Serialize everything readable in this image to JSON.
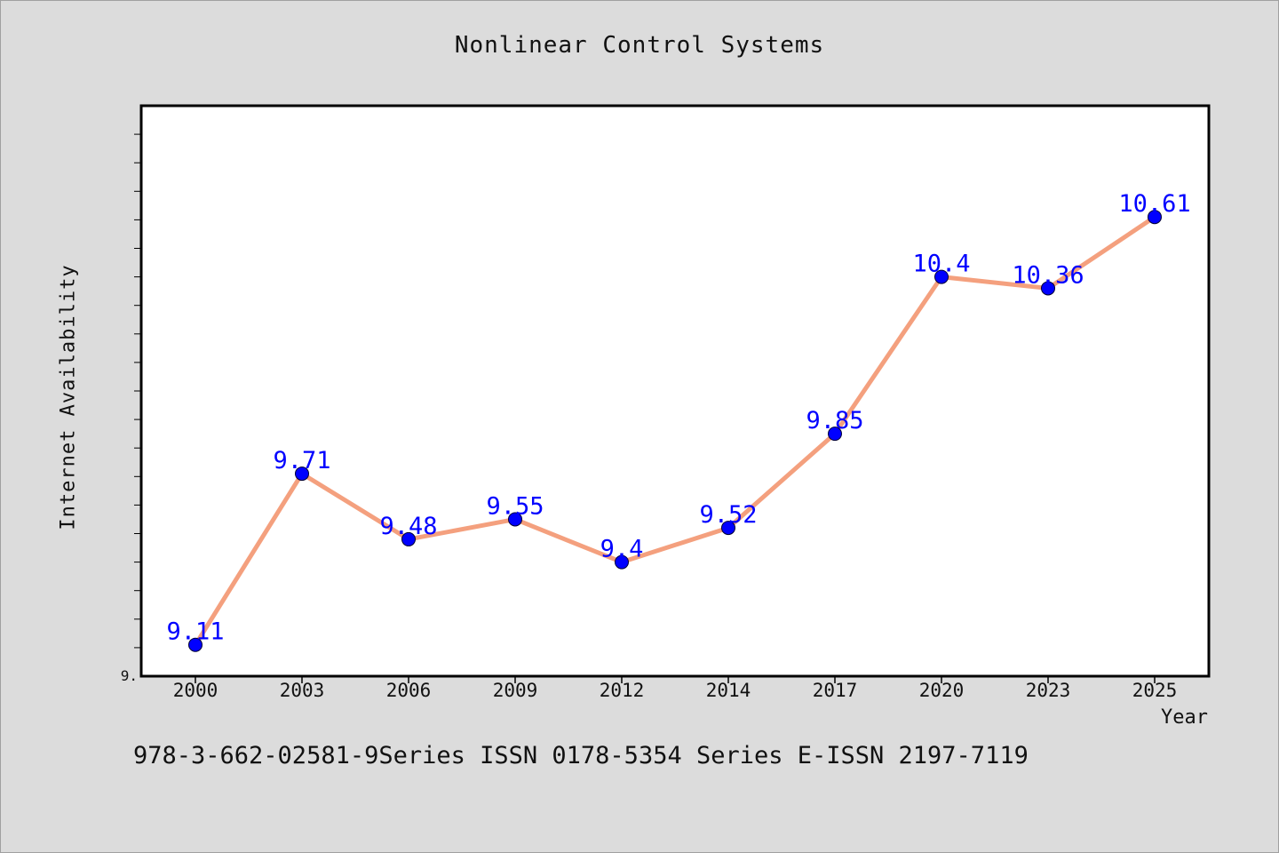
{
  "title": "Nonlinear Control Systems",
  "footer": "978-3-662-02581-9Series ISSN 0178-5354 Series E-ISSN 2197-7119",
  "colors": {
    "background": "#dcdcdc",
    "plot_background": "#ffffff",
    "line": "#f4a07e",
    "marker": "#0000ff",
    "data_label": "#0000ff"
  },
  "chart_data": {
    "type": "line",
    "title": "Nonlinear Control Systems",
    "xlabel": "Year",
    "ylabel": "Internet Availability",
    "categories": [
      "2000",
      "2003",
      "2006",
      "2009",
      "2012",
      "2014",
      "2017",
      "2020",
      "2023",
      "2025"
    ],
    "series": [
      {
        "values": [
          9.11,
          9.71,
          9.48,
          9.55,
          9.4,
          9.52,
          9.85,
          10.4,
          10.36,
          10.61
        ]
      }
    ],
    "data_labels": [
      "9.11",
      "9.71",
      "9.48",
      "9.55",
      "9.4",
      "9.52",
      "9.85",
      "10.4",
      "10.36",
      "10.61"
    ],
    "ylim": [
      9.0,
      11.0
    ],
    "y_tick_labels": [
      "9."
    ],
    "grid": false,
    "legend": "none"
  }
}
